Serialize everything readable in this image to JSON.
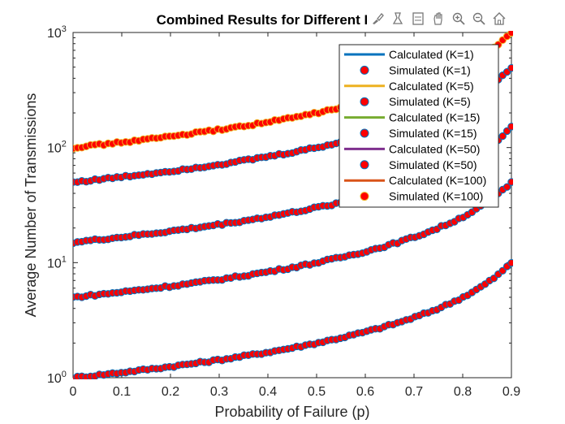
{
  "chart_data": {
    "type": "line",
    "title": "Combined Results for Different K Values",
    "xlabel": "Probability of Failure (p)",
    "ylabel": "Average Number of Transmissions",
    "xlim": [
      0,
      0.9
    ],
    "ylim": [
      1,
      1000
    ],
    "yscale": "log",
    "xticks": [
      "0",
      "0.1",
      "0.2",
      "0.3",
      "0.4",
      "0.5",
      "0.6",
      "0.7",
      "0.8",
      "0.9"
    ],
    "yticks": [
      {
        "base": "10",
        "exp": "0",
        "value": 1
      },
      {
        "base": "10",
        "exp": "1",
        "value": 10
      },
      {
        "base": "10",
        "exp": "2",
        "value": 100
      },
      {
        "base": "10",
        "exp": "3",
        "value": 1000
      }
    ],
    "x": [
      0,
      0.1,
      0.2,
      0.3,
      0.4,
      0.5,
      0.6,
      0.7,
      0.8,
      0.9
    ],
    "grid": false,
    "legend_position": "top-right",
    "series": [
      {
        "name": "Calculated (K=1)",
        "K": 1,
        "kind": "line",
        "color": "#0072BD",
        "values": [
          1,
          1.11,
          1.25,
          1.43,
          1.67,
          2,
          2.5,
          3.33,
          5,
          10
        ]
      },
      {
        "name": "Simulated (K=1)",
        "K": 1,
        "kind": "marker",
        "color": "#FF0000",
        "edge": "#0072BD",
        "values": [
          1,
          1.11,
          1.25,
          1.43,
          1.67,
          2,
          2.5,
          3.33,
          5,
          10
        ]
      },
      {
        "name": "Calculated (K=5)",
        "K": 5,
        "kind": "line",
        "color": "#EDB120",
        "values": [
          5,
          5.56,
          6.25,
          7.14,
          8.33,
          10,
          12.5,
          16.7,
          25,
          50
        ]
      },
      {
        "name": "Simulated (K=5)",
        "K": 5,
        "kind": "marker",
        "color": "#FF0000",
        "edge": "#0072BD",
        "values": [
          5,
          5.56,
          6.25,
          7.14,
          8.33,
          10,
          12.5,
          16.7,
          25,
          50
        ]
      },
      {
        "name": "Calculated (K=15)",
        "K": 15,
        "kind": "line",
        "color": "#77AC30",
        "values": [
          15,
          16.7,
          18.8,
          21.4,
          25,
          30,
          37.5,
          50,
          75,
          150
        ]
      },
      {
        "name": "Simulated (K=15)",
        "K": 15,
        "kind": "marker",
        "color": "#FF0000",
        "edge": "#0072BD",
        "values": [
          15,
          16.7,
          18.8,
          21.4,
          25,
          30,
          37.5,
          50,
          75,
          150
        ]
      },
      {
        "name": "Calculated (K=50)",
        "K": 50,
        "kind": "line",
        "color": "#7E2F8E",
        "values": [
          50,
          55.6,
          62.5,
          71.4,
          83.3,
          100,
          125,
          167,
          250,
          500
        ]
      },
      {
        "name": "Simulated (K=50)",
        "K": 50,
        "kind": "marker",
        "color": "#FF0000",
        "edge": "#0072BD",
        "values": [
          50,
          55.6,
          62.5,
          71.4,
          83.3,
          100,
          125,
          167,
          250,
          500
        ]
      },
      {
        "name": "Calculated (K=100)",
        "K": 100,
        "kind": "line",
        "color": "#D95319",
        "values": [
          100,
          111,
          125,
          143,
          167,
          200,
          250,
          333,
          500,
          1000
        ]
      },
      {
        "name": "Simulated (K=100)",
        "K": 100,
        "kind": "marker",
        "color": "#FF0000",
        "edge": "#EDB120",
        "values": [
          100,
          111,
          125,
          143,
          167,
          200,
          250,
          333,
          500,
          1000
        ]
      }
    ]
  },
  "toolbar": {
    "items": [
      {
        "id": "brush",
        "icon": "brush-icon"
      },
      {
        "id": "datatips",
        "icon": "datatip-icon"
      },
      {
        "id": "restore",
        "icon": "legend-icon"
      },
      {
        "id": "pan",
        "icon": "pan-icon"
      },
      {
        "id": "zoom-in",
        "icon": "zoom-in-icon"
      },
      {
        "id": "zoom-out",
        "icon": "zoom-out-icon"
      },
      {
        "id": "home",
        "icon": "home-icon"
      }
    ]
  }
}
